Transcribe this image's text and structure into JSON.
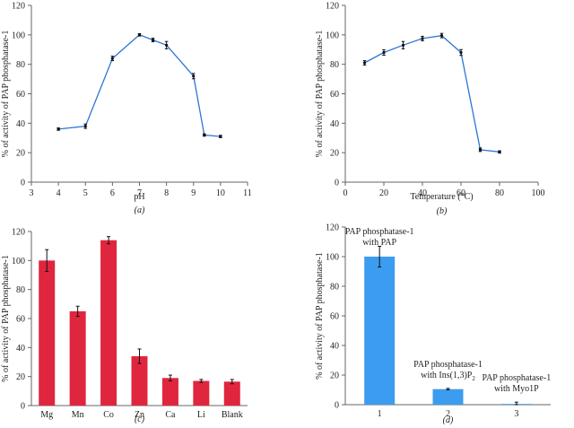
{
  "chart_data": [
    {
      "id": "a",
      "type": "line",
      "panel_label": "(a)",
      "xlabel": "pH",
      "ylabel": "% of activity of PAP phosphatase-1",
      "xlim": [
        3,
        11
      ],
      "ylim": [
        0,
        120
      ],
      "xticks": [
        3,
        4,
        5,
        6,
        7,
        8,
        9,
        10,
        11
      ],
      "yticks": [
        0,
        20,
        40,
        60,
        80,
        100,
        120
      ],
      "color": "#2E75D6",
      "series": [
        {
          "x": [
            4,
            5,
            6,
            7,
            7.5,
            8,
            9,
            9.4,
            10
          ],
          "y": [
            36,
            38,
            84,
            100,
            96.5,
            93,
            72,
            32,
            31
          ],
          "err": [
            0.8,
            1.5,
            1.5,
            0.8,
            1.2,
            2.5,
            1.8,
            0.8,
            0.8
          ]
        }
      ]
    },
    {
      "id": "b",
      "type": "line",
      "panel_label": "(b)",
      "xlabel": "Temperature (°C)",
      "ylabel": "% of activity of PAP phosphatase-1",
      "xlim": [
        0,
        100
      ],
      "ylim": [
        0,
        120
      ],
      "xticks": [
        0,
        20,
        40,
        60,
        80,
        100
      ],
      "yticks": [
        0,
        20,
        40,
        60,
        80,
        100,
        120
      ],
      "color": "#2E75D6",
      "series": [
        {
          "x": [
            10,
            20,
            30,
            40,
            50,
            60,
            70,
            80
          ],
          "y": [
            81,
            88,
            93,
            97.5,
            99.5,
            88,
            22,
            20.5
          ],
          "err": [
            1.5,
            1.8,
            2.5,
            1.5,
            1.5,
            2,
            1.2,
            0.8
          ]
        }
      ]
    },
    {
      "id": "c",
      "type": "bar",
      "panel_label": "(c)",
      "xlabel": "",
      "ylabel": "% of activity of PAP phosphatase-1",
      "ylim": [
        0,
        120
      ],
      "yticks": [
        0,
        20,
        40,
        60,
        80,
        100,
        120
      ],
      "color": "#E0263E",
      "categories": [
        "Mg",
        "Mn",
        "Co",
        "Zn",
        "Ca",
        "Li",
        "Blank"
      ],
      "values": [
        100,
        65,
        114,
        34,
        19,
        17,
        16.5
      ],
      "err": [
        7.5,
        3.5,
        2.5,
        5,
        2,
        1,
        1.5
      ]
    },
    {
      "id": "d",
      "type": "bar",
      "panel_label": "(d)",
      "xlabel": "",
      "ylabel": "% of activity of PAP phosphatase-1",
      "ylim": [
        0,
        120
      ],
      "yticks": [
        0,
        20,
        40,
        60,
        80,
        100,
        120
      ],
      "color": "#3C9CF0",
      "categories": [
        "1",
        "2",
        "3"
      ],
      "values": [
        100,
        10.5,
        0.5
      ],
      "err": [
        7,
        0.5,
        1.2
      ],
      "annotations": [
        {
          "line1": "PAP phosphatase-1",
          "line2": "with PAP"
        },
        {
          "line1": "PAP phosphatase-1",
          "line2": "with Ins(1,3)P",
          "sub": "2"
        },
        {
          "line1": "PAP phosphatase-1",
          "line2": "with Myo1P"
        }
      ]
    }
  ]
}
